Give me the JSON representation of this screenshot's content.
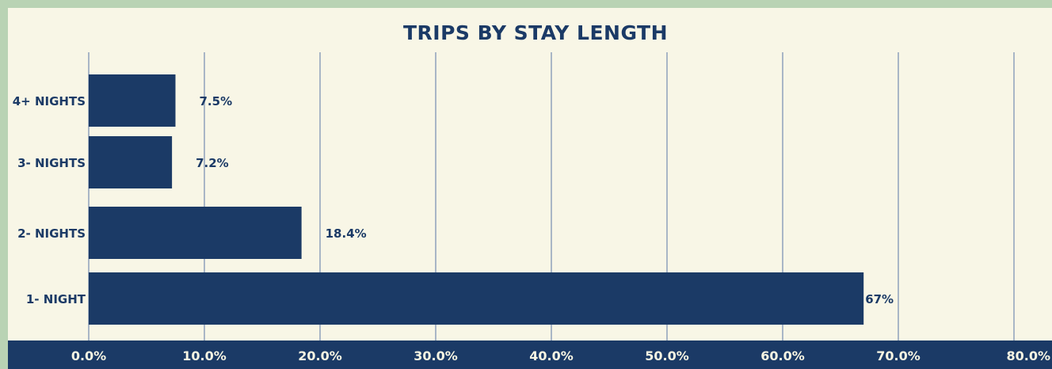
{
  "chart_data": {
    "type": "bar",
    "orientation": "horizontal",
    "title": "TRIPS BY STAY LENGTH",
    "categories": [
      "4+ NIGHTS",
      "3- NIGHTS",
      "2- NIGHTS",
      "1- NIGHT"
    ],
    "values": [
      7.5,
      7.2,
      18.4,
      67
    ],
    "value_labels": [
      "7.5%",
      "7.2%",
      "18.4%",
      "67%"
    ],
    "xlim": [
      0,
      80
    ],
    "xticks": [
      0,
      10,
      20,
      30,
      40,
      50,
      60,
      70,
      80
    ],
    "xtick_labels": [
      "0.0%",
      "10.0%",
      "20.0%",
      "30.0%",
      "40.0%",
      "50.0%",
      "60.0%",
      "70.0%",
      "80.0%"
    ],
    "grid": "vertical",
    "legend": "none",
    "colors": {
      "bar": "#1b3a66",
      "background": "#f8f6e6",
      "border": "#b9d3b4",
      "axis_band": "#1b3a66",
      "grid": "#a9b6c6"
    }
  }
}
